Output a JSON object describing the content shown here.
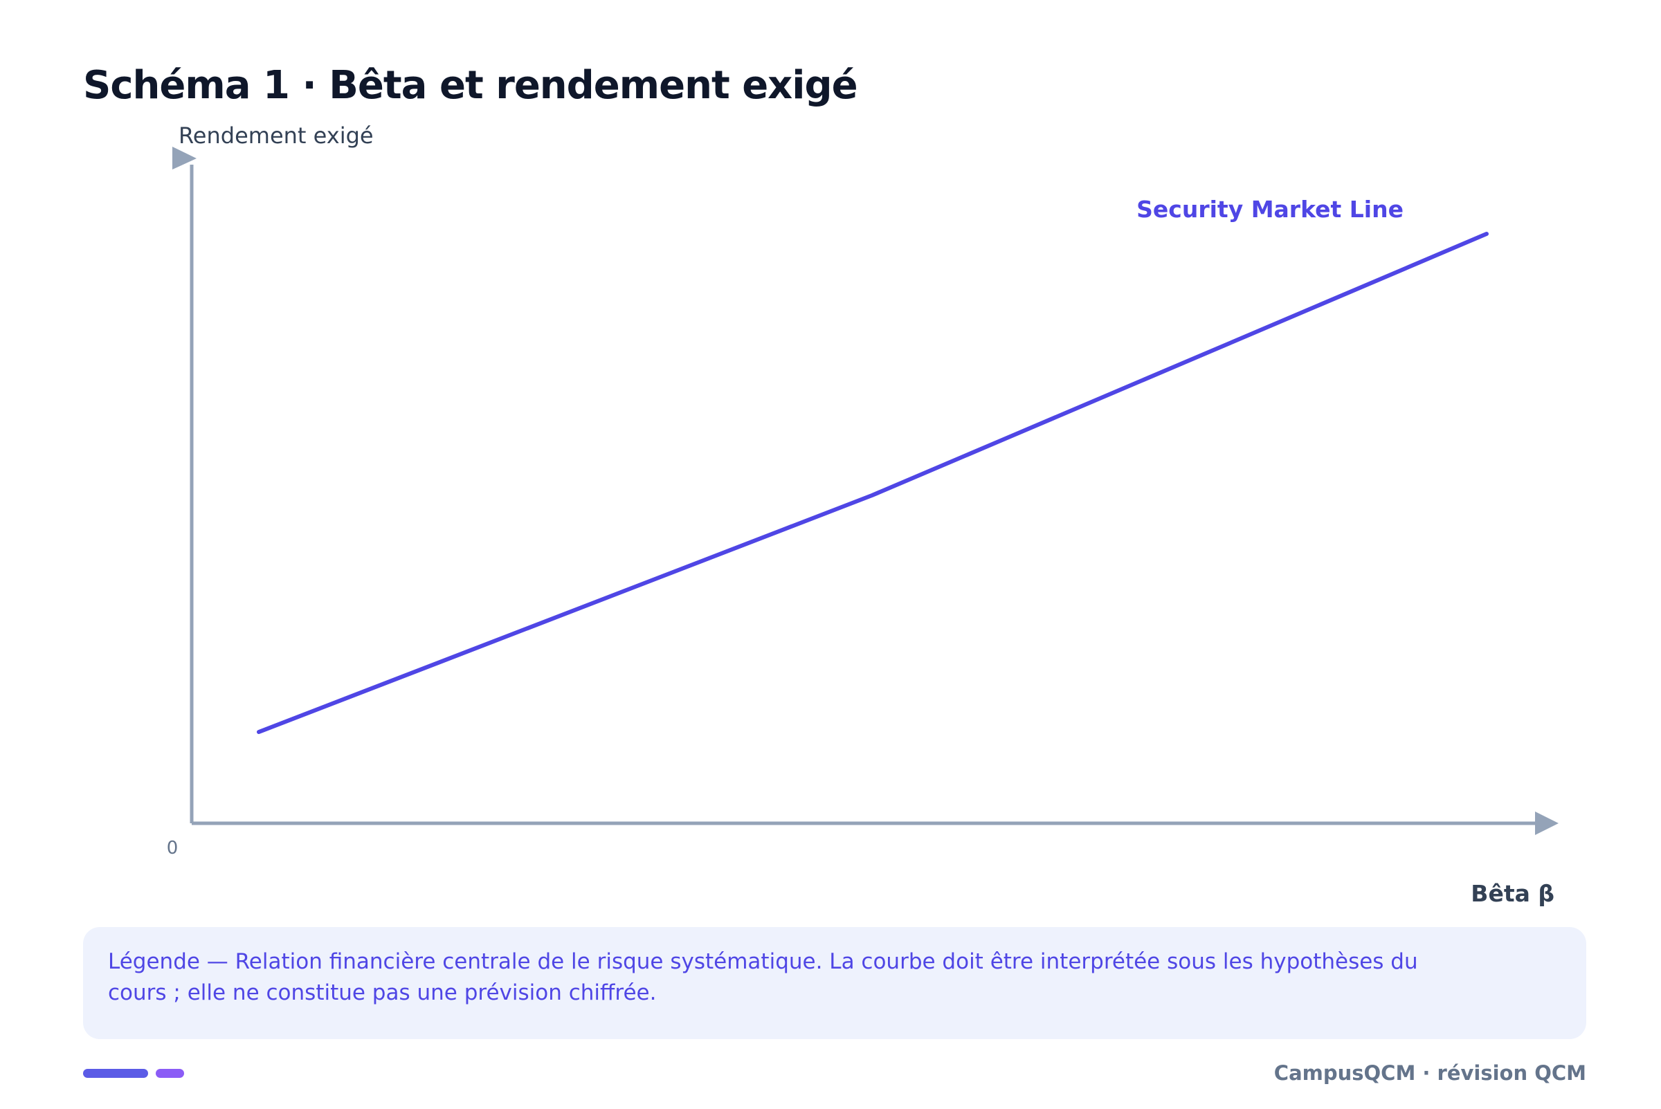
{
  "header": {
    "title": "Schéma 1 · Bêta et rendement exigé"
  },
  "diagram": {
    "y_axis_label": "Rendement exigé",
    "x_axis_label": "Bêta β",
    "origin_label": "0",
    "line_label": "Security Market Line"
  },
  "legend": {
    "text": "Légende — Relation financière centrale de le risque systématique. La courbe doit être interprétée sous les hypothèses du cours ; elle ne constitue pas une prévision chiffrée."
  },
  "footer": {
    "brand": "CampusQCM · révision QCM"
  },
  "colors": {
    "axis": "#94a3b8",
    "line": "#4f46e5",
    "title": "#0f172a",
    "legend_bg": "#eef2fd"
  }
}
